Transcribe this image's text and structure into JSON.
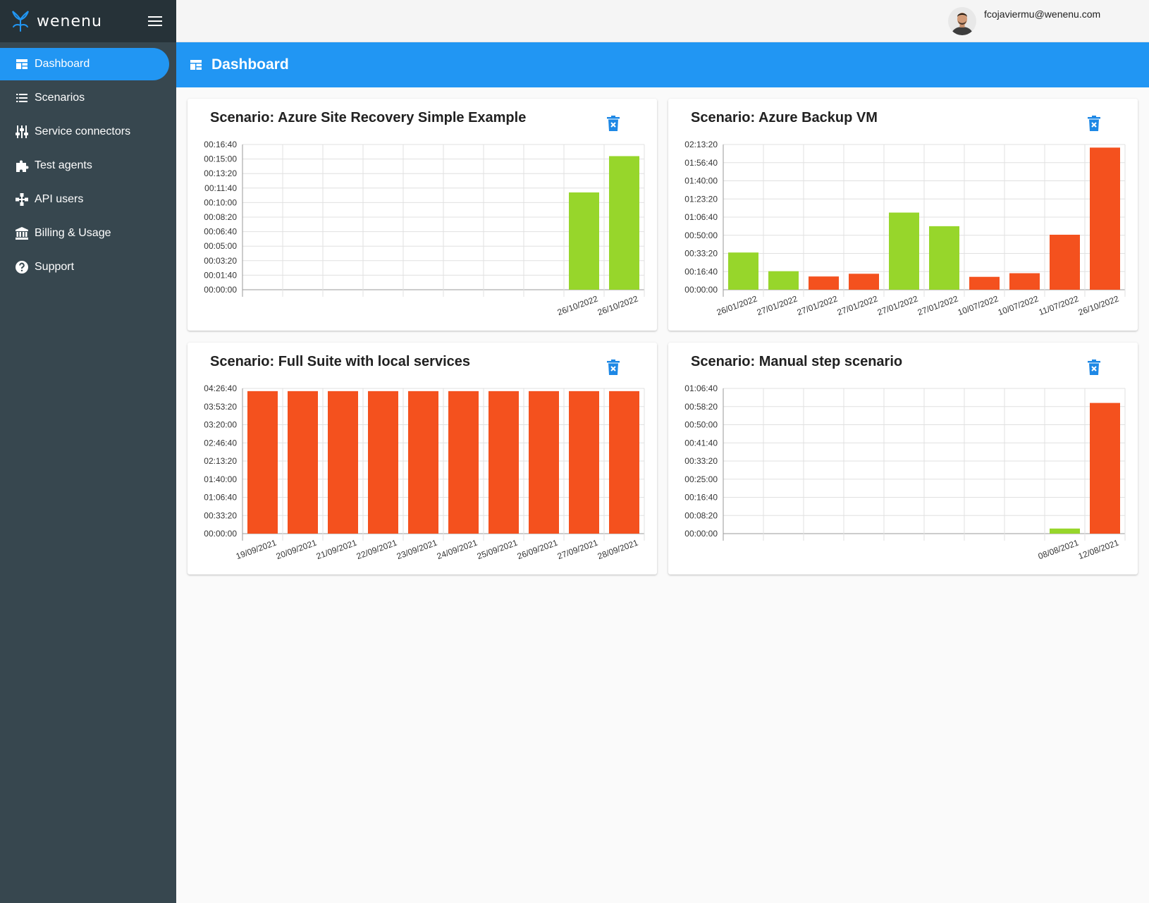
{
  "app": {
    "brand": "wenenu",
    "user_email": "fcojaviermu@wenenu.com"
  },
  "sidebar": {
    "items": [
      {
        "label": "Dashboard",
        "icon": "dashboard-icon",
        "active": true
      },
      {
        "label": "Scenarios",
        "icon": "list-icon",
        "active": false
      },
      {
        "label": "Service connectors",
        "icon": "sliders-icon",
        "active": false
      },
      {
        "label": "Test agents",
        "icon": "puzzle-icon",
        "active": false
      },
      {
        "label": "API users",
        "icon": "network-icon",
        "active": false
      },
      {
        "label": "Billing & Usage",
        "icon": "bank-icon",
        "active": false
      },
      {
        "label": "Support",
        "icon": "help-circle-icon",
        "active": false
      }
    ]
  },
  "header": {
    "title": "Dashboard"
  },
  "colors": {
    "accent": "#2196f3",
    "sidebar": "#37474f",
    "sidebar_header": "#263238",
    "success": "#97d62b",
    "failure": "#f4511e",
    "delete_icon": "#1e88e5"
  },
  "charts": [
    {
      "title": "Scenario: Azure Site Recovery Simple Example",
      "chart_data": {
        "type": "bar",
        "y_ticks": [
          "00:00:00",
          "00:01:40",
          "00:03:20",
          "00:05:00",
          "00:06:40",
          "00:08:20",
          "00:10:00",
          "00:11:40",
          "00:13:20",
          "00:15:00",
          "00:16:40"
        ],
        "ylim": [
          0,
          1000
        ],
        "slots": 10,
        "categories": [
          "26/10/2022",
          "26/10/2022"
        ],
        "slot_index": [
          8,
          9
        ],
        "values": [
          670,
          920
        ],
        "status": [
          "success",
          "success"
        ]
      }
    },
    {
      "title": "Scenario: Azure Backup VM",
      "chart_data": {
        "type": "bar",
        "y_ticks": [
          "00:00:00",
          "00:16:40",
          "00:33:20",
          "00:50:00",
          "01:06:40",
          "01:23:20",
          "01:40:00",
          "01:56:40",
          "02:13:20"
        ],
        "ylim": [
          0,
          8000
        ],
        "slots": 10,
        "categories": [
          "26/01/2022",
          "27/01/2022",
          "27/01/2022",
          "27/01/2022",
          "27/01/2022",
          "27/01/2022",
          "10/07/2022",
          "10/07/2022",
          "11/07/2022",
          "26/10/2022"
        ],
        "slot_index": [
          0,
          1,
          2,
          3,
          4,
          5,
          6,
          7,
          8,
          9
        ],
        "values": [
          2050,
          1020,
          730,
          880,
          4250,
          3500,
          710,
          910,
          3030,
          7830
        ],
        "status": [
          "success",
          "success",
          "failure",
          "failure",
          "success",
          "success",
          "failure",
          "failure",
          "failure",
          "failure"
        ]
      }
    },
    {
      "title": "Scenario: Full Suite with local services",
      "chart_data": {
        "type": "bar",
        "y_ticks": [
          "00:00:00",
          "00:33:20",
          "01:06:40",
          "01:40:00",
          "02:13:20",
          "02:46:40",
          "03:20:00",
          "03:53:20",
          "04:26:40"
        ],
        "ylim": [
          0,
          16000
        ],
        "slots": 10,
        "categories": [
          "19/09/2021",
          "20/09/2021",
          "21/09/2021",
          "22/09/2021",
          "23/09/2021",
          "24/09/2021",
          "25/09/2021",
          "26/09/2021",
          "27/09/2021",
          "28/09/2021"
        ],
        "slot_index": [
          0,
          1,
          2,
          3,
          4,
          5,
          6,
          7,
          8,
          9
        ],
        "values": [
          15700,
          15700,
          15700,
          15700,
          15700,
          15700,
          15700,
          15700,
          15700,
          15700
        ],
        "status": [
          "failure",
          "failure",
          "failure",
          "failure",
          "failure",
          "failure",
          "failure",
          "failure",
          "failure",
          "failure"
        ]
      }
    },
    {
      "title": "Scenario: Manual step scenario",
      "chart_data": {
        "type": "bar",
        "y_ticks": [
          "00:00:00",
          "00:08:20",
          "00:16:40",
          "00:25:00",
          "00:33:20",
          "00:41:40",
          "00:50:00",
          "00:58:20",
          "01:06:40"
        ],
        "ylim": [
          0,
          4000
        ],
        "slots": 10,
        "categories": [
          "08/08/2021",
          "12/08/2021"
        ],
        "slot_index": [
          8,
          9
        ],
        "values": [
          140,
          3600
        ],
        "status": [
          "success",
          "failure"
        ]
      }
    }
  ]
}
